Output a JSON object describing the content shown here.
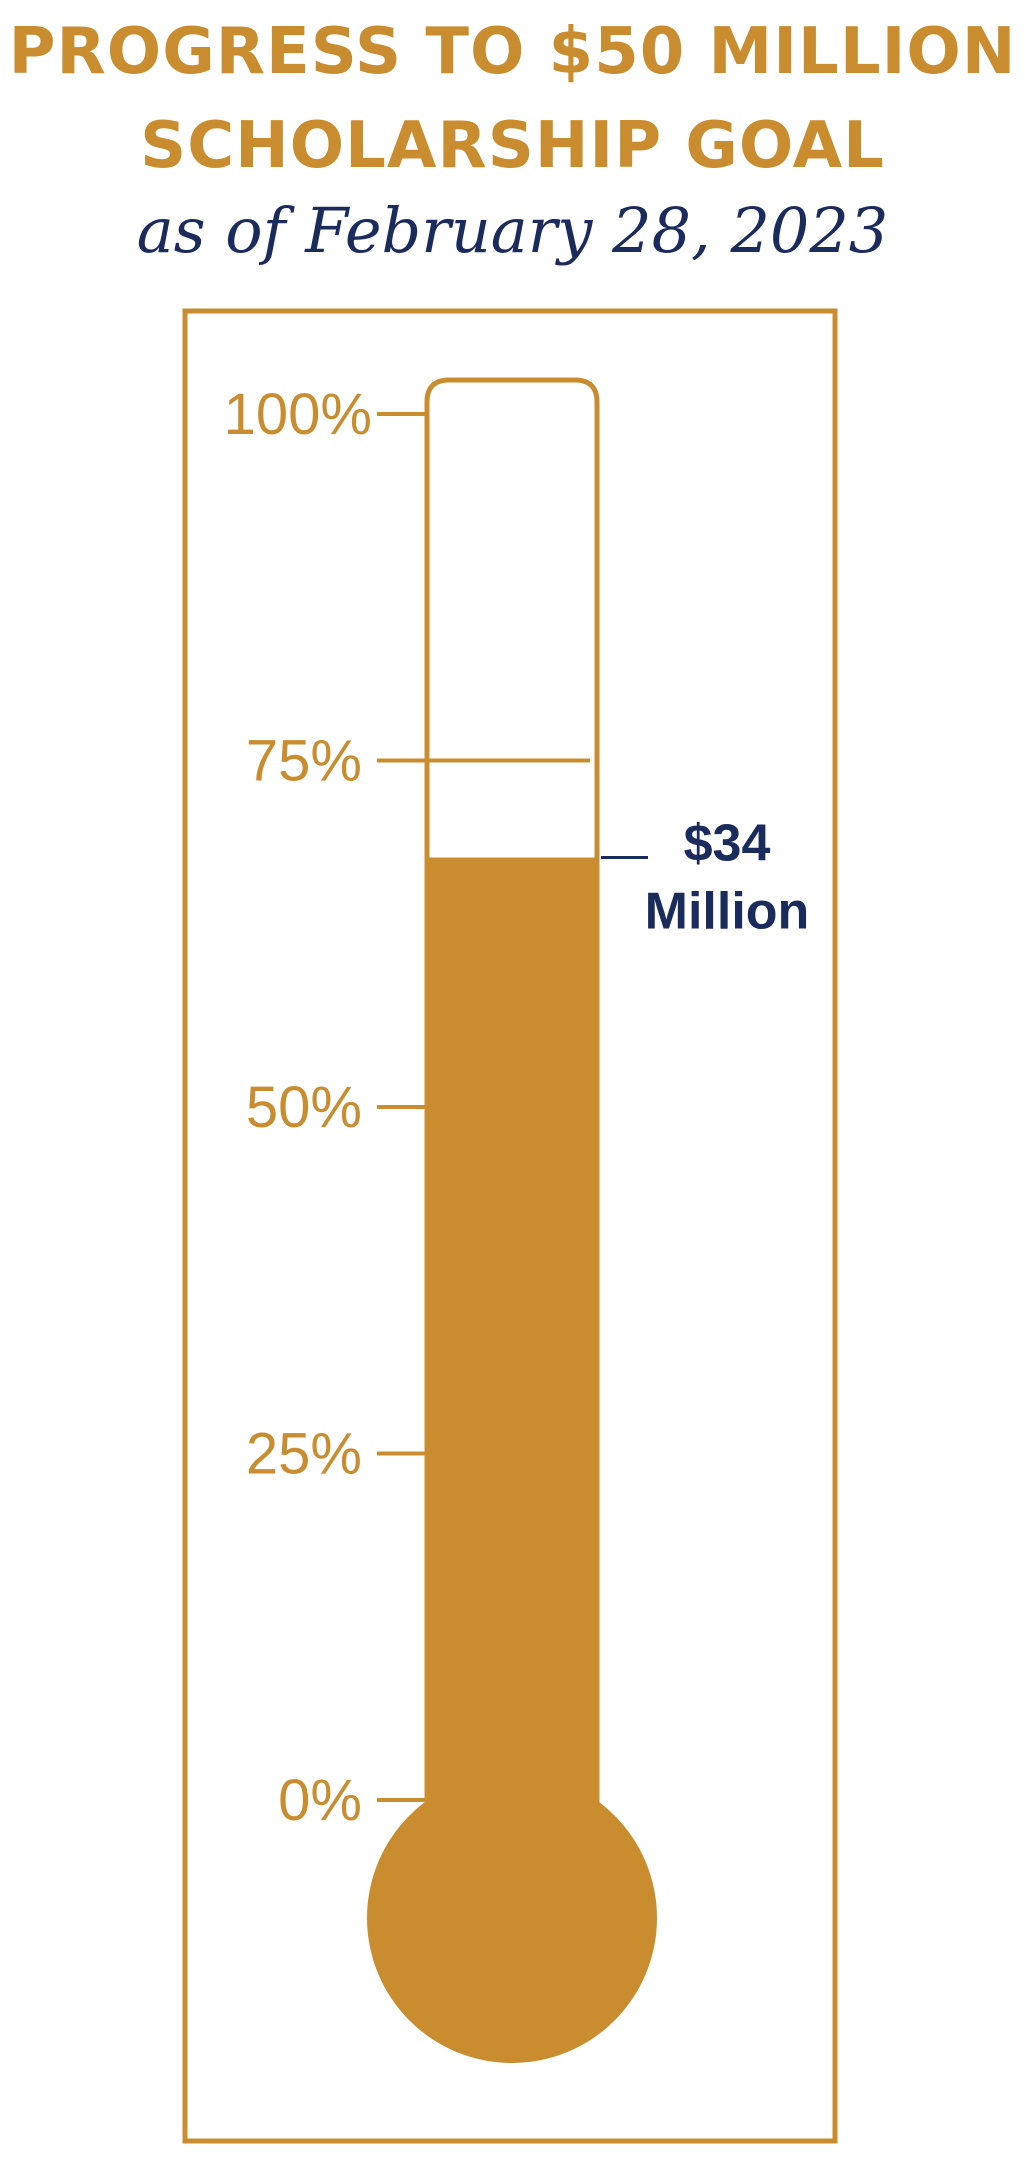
{
  "header": {
    "title_line_1": "PROGRESS TO $50 MILLION",
    "title_line_2": "SCHOLARSHIP GOAL",
    "subtitle": "as of February 28, 2023"
  },
  "colors": {
    "gold": "#C98D30",
    "navy": "#1B2B5C"
  },
  "chart_data": {
    "type": "thermometer",
    "title": "PROGRESS TO $50 MILLION SCHOLARSHIP GOAL",
    "subtitle": "as of February 28, 2023",
    "goal": 50,
    "goal_unit": "Million",
    "current": 34,
    "percent": 68,
    "ylim": [
      0,
      100
    ],
    "ticks": [
      {
        "value": 100,
        "label": "100%"
      },
      {
        "value": 75,
        "label": "75%"
      },
      {
        "value": 50,
        "label": "50%"
      },
      {
        "value": 25,
        "label": "25%"
      },
      {
        "value": 0,
        "label": "0%"
      }
    ],
    "annotation": {
      "line1": "$34",
      "line2": "Million"
    }
  }
}
